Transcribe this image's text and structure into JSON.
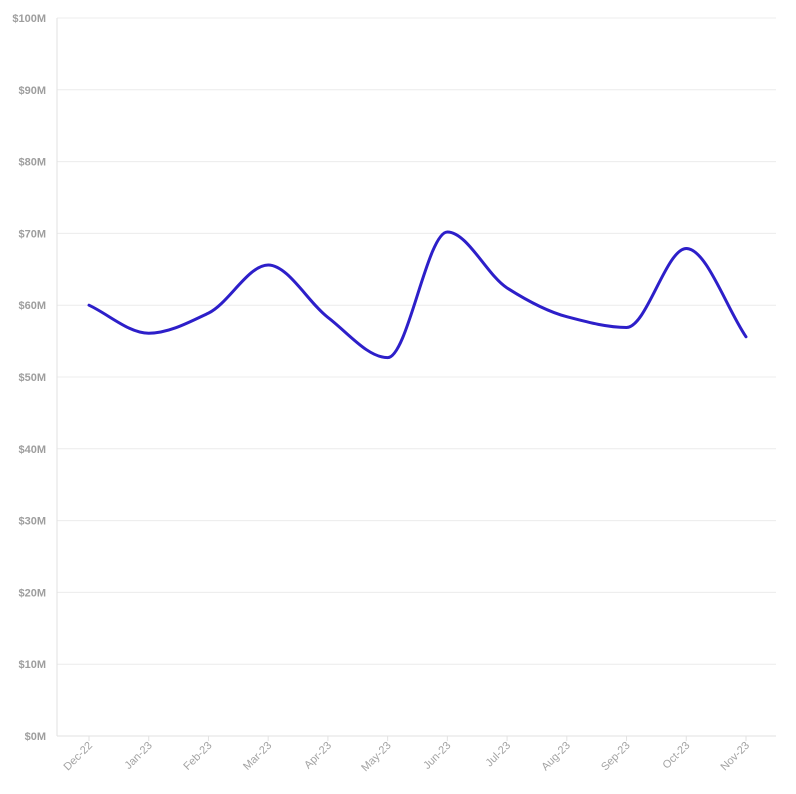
{
  "chart_data": {
    "type": "line",
    "title": "",
    "xlabel": "",
    "ylabel": "",
    "categories": [
      "Dec-22",
      "Jan-23",
      "Feb-23",
      "Mar-23",
      "Apr-23",
      "May-23",
      "Jun-23",
      "Jul-23",
      "Aug-23",
      "Sep-23",
      "Oct-23",
      "Nov-23"
    ],
    "series": [
      {
        "values": [
          60.0,
          56.1,
          58.9,
          65.6,
          58.3,
          52.7,
          70.2,
          62.4,
          58.4,
          56.9,
          67.9,
          55.6
        ],
        "color": "#2d1fc9"
      }
    ],
    "ylim": [
      0,
      100
    ],
    "y_ticks": [
      0,
      10,
      20,
      30,
      40,
      50,
      60,
      70,
      80,
      90,
      100
    ],
    "y_tick_labels": [
      "$0M",
      "$10M",
      "$20M",
      "$30M",
      "$40M",
      "$50M",
      "$60M",
      "$70M",
      "$80M",
      "$90M",
      "$100M"
    ],
    "grid": true,
    "legend": "none",
    "curve": "smooth",
    "colors": {
      "grid": "#ececec",
      "tick_text": "#9e9e9e"
    }
  }
}
